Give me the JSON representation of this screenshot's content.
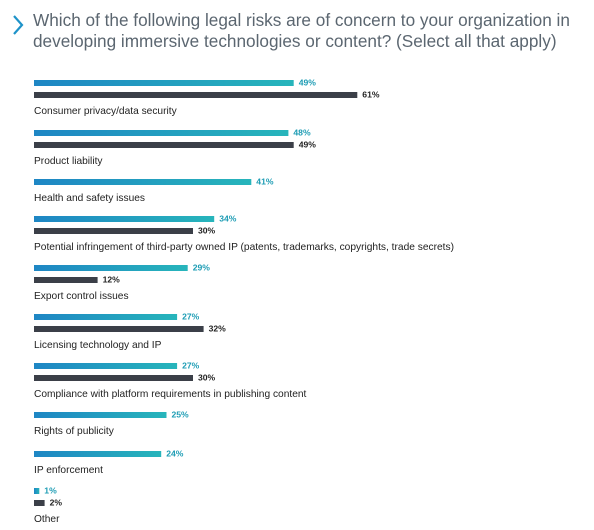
{
  "title": "Which of the following legal risks are of concern to your organization in developing immersive technologies or content? (Select all that apply)",
  "colors": {
    "title": "#5b6670",
    "accent": "#1e93c9",
    "series_a": "#27b5bb",
    "series_b": "#3b3f48",
    "label_a": "#1c9cb4",
    "label_b": "#222222",
    "text": "#222222"
  },
  "chart_data": {
    "type": "bar",
    "orientation": "horizontal",
    "title": "Which of the following legal risks are of concern to your organization in developing immersive technologies or content? (Select all that apply)",
    "unit": "%",
    "xlim": [
      0,
      100
    ],
    "grid": false,
    "legend": "none",
    "categories": [
      "Consumer privacy/data security",
      "Product liability",
      "Health and safety issues",
      "Potential infringement of third-party owned IP (patents, trademarks, copyrights, trade secrets)",
      "Export control issues",
      "Licensing technology and IP",
      "Compliance with platform requirements in publishing content",
      "Rights of publicity",
      "IP enforcement",
      "Other"
    ],
    "series": [
      {
        "color": "#27b5bb",
        "label_color": "#1c9cb4",
        "values": [
          49,
          48,
          41,
          34,
          29,
          27,
          27,
          25,
          24,
          1
        ],
        "labels": [
          "49%",
          "48%",
          "41%",
          "34%",
          "29%",
          "27%",
          "27%",
          "25%",
          "24%",
          "1%"
        ]
      },
      {
        "color": "#3b3f48",
        "label_color": "#222222",
        "values": [
          61,
          49,
          null,
          30,
          12,
          32,
          30,
          null,
          null,
          2
        ],
        "labels": [
          "61%",
          "49%",
          null,
          "30%",
          "12%",
          "32%",
          "30%",
          null,
          null,
          "2%"
        ]
      }
    ]
  }
}
